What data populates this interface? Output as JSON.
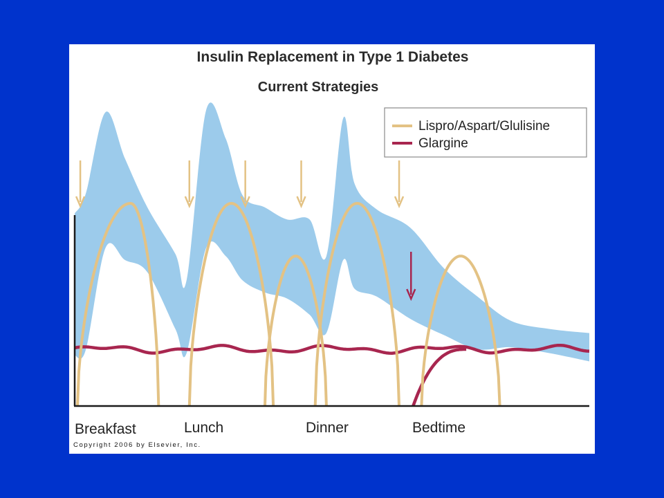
{
  "chart_data": {
    "type": "line",
    "title": "Insulin Replacement in Type 1 Diabetes",
    "subtitle": "Current Strategies",
    "xlabel": "",
    "ylabel": "",
    "categories": [
      "Breakfast",
      "Lunch",
      "Dinner",
      "Bedtime"
    ],
    "legend": {
      "placement": "top-right"
    },
    "grid": false,
    "series": [
      {
        "name": "Lispro/Aspart/Glulisine",
        "color": "#e3c284",
        "kind": "bolus-peaks",
        "peaks": [
          {
            "start": 0.05,
            "peak": 1.0,
            "end": 1.5,
            "level": 1.0
          },
          {
            "start": 2.05,
            "peak": 2.8,
            "end": 3.55,
            "level": 1.0
          },
          {
            "start": 3.4,
            "peak": 3.95,
            "end": 4.5,
            "level": 0.74
          },
          {
            "start": 4.3,
            "peak": 5.05,
            "end": 5.8,
            "level": 1.0
          },
          {
            "start": 6.2,
            "peak": 6.9,
            "end": 7.6,
            "level": 0.74
          }
        ]
      },
      {
        "name": "Glargine",
        "color": "#a8264f",
        "kind": "basal",
        "level": 0.28,
        "onset": {
          "start": 6.05,
          "plateau": 7.0
        }
      }
    ],
    "glucose_band": {
      "color": "#9ccbeb",
      "x": [
        0.0,
        0.2,
        0.55,
        0.9,
        1.3,
        1.8,
        2.0,
        2.35,
        2.7,
        3.0,
        3.4,
        3.8,
        4.2,
        4.5,
        4.8,
        5.0,
        5.4,
        6.0,
        6.6,
        7.2,
        7.8,
        8.5,
        9.2
      ],
      "upper": [
        0.95,
        1.05,
        1.45,
        1.22,
        0.98,
        0.75,
        0.62,
        1.46,
        1.32,
        1.04,
        0.98,
        0.92,
        0.92,
        0.74,
        1.42,
        1.1,
        0.97,
        0.88,
        0.68,
        0.54,
        0.42,
        0.38,
        0.36
      ],
      "lower": [
        0.25,
        0.28,
        0.78,
        0.72,
        0.66,
        0.38,
        0.26,
        0.78,
        0.74,
        0.62,
        0.56,
        0.53,
        0.45,
        0.36,
        0.72,
        0.58,
        0.54,
        0.43,
        0.35,
        0.28,
        0.29,
        0.26,
        0.22
      ]
    },
    "dosing_arrows": {
      "rapid": [
        0.1,
        2.05,
        3.05,
        4.05,
        5.8
      ],
      "basal": [
        6.05
      ]
    },
    "xlim": [
      0,
      9.2
    ],
    "ylim": [
      0,
      1.5
    ]
  },
  "copyright": "Copyright 2006 by Elsevier, Inc.",
  "colors": {
    "background": "#0033cc",
    "panel": "#ffffff",
    "axis": "#1a1a1a"
  }
}
